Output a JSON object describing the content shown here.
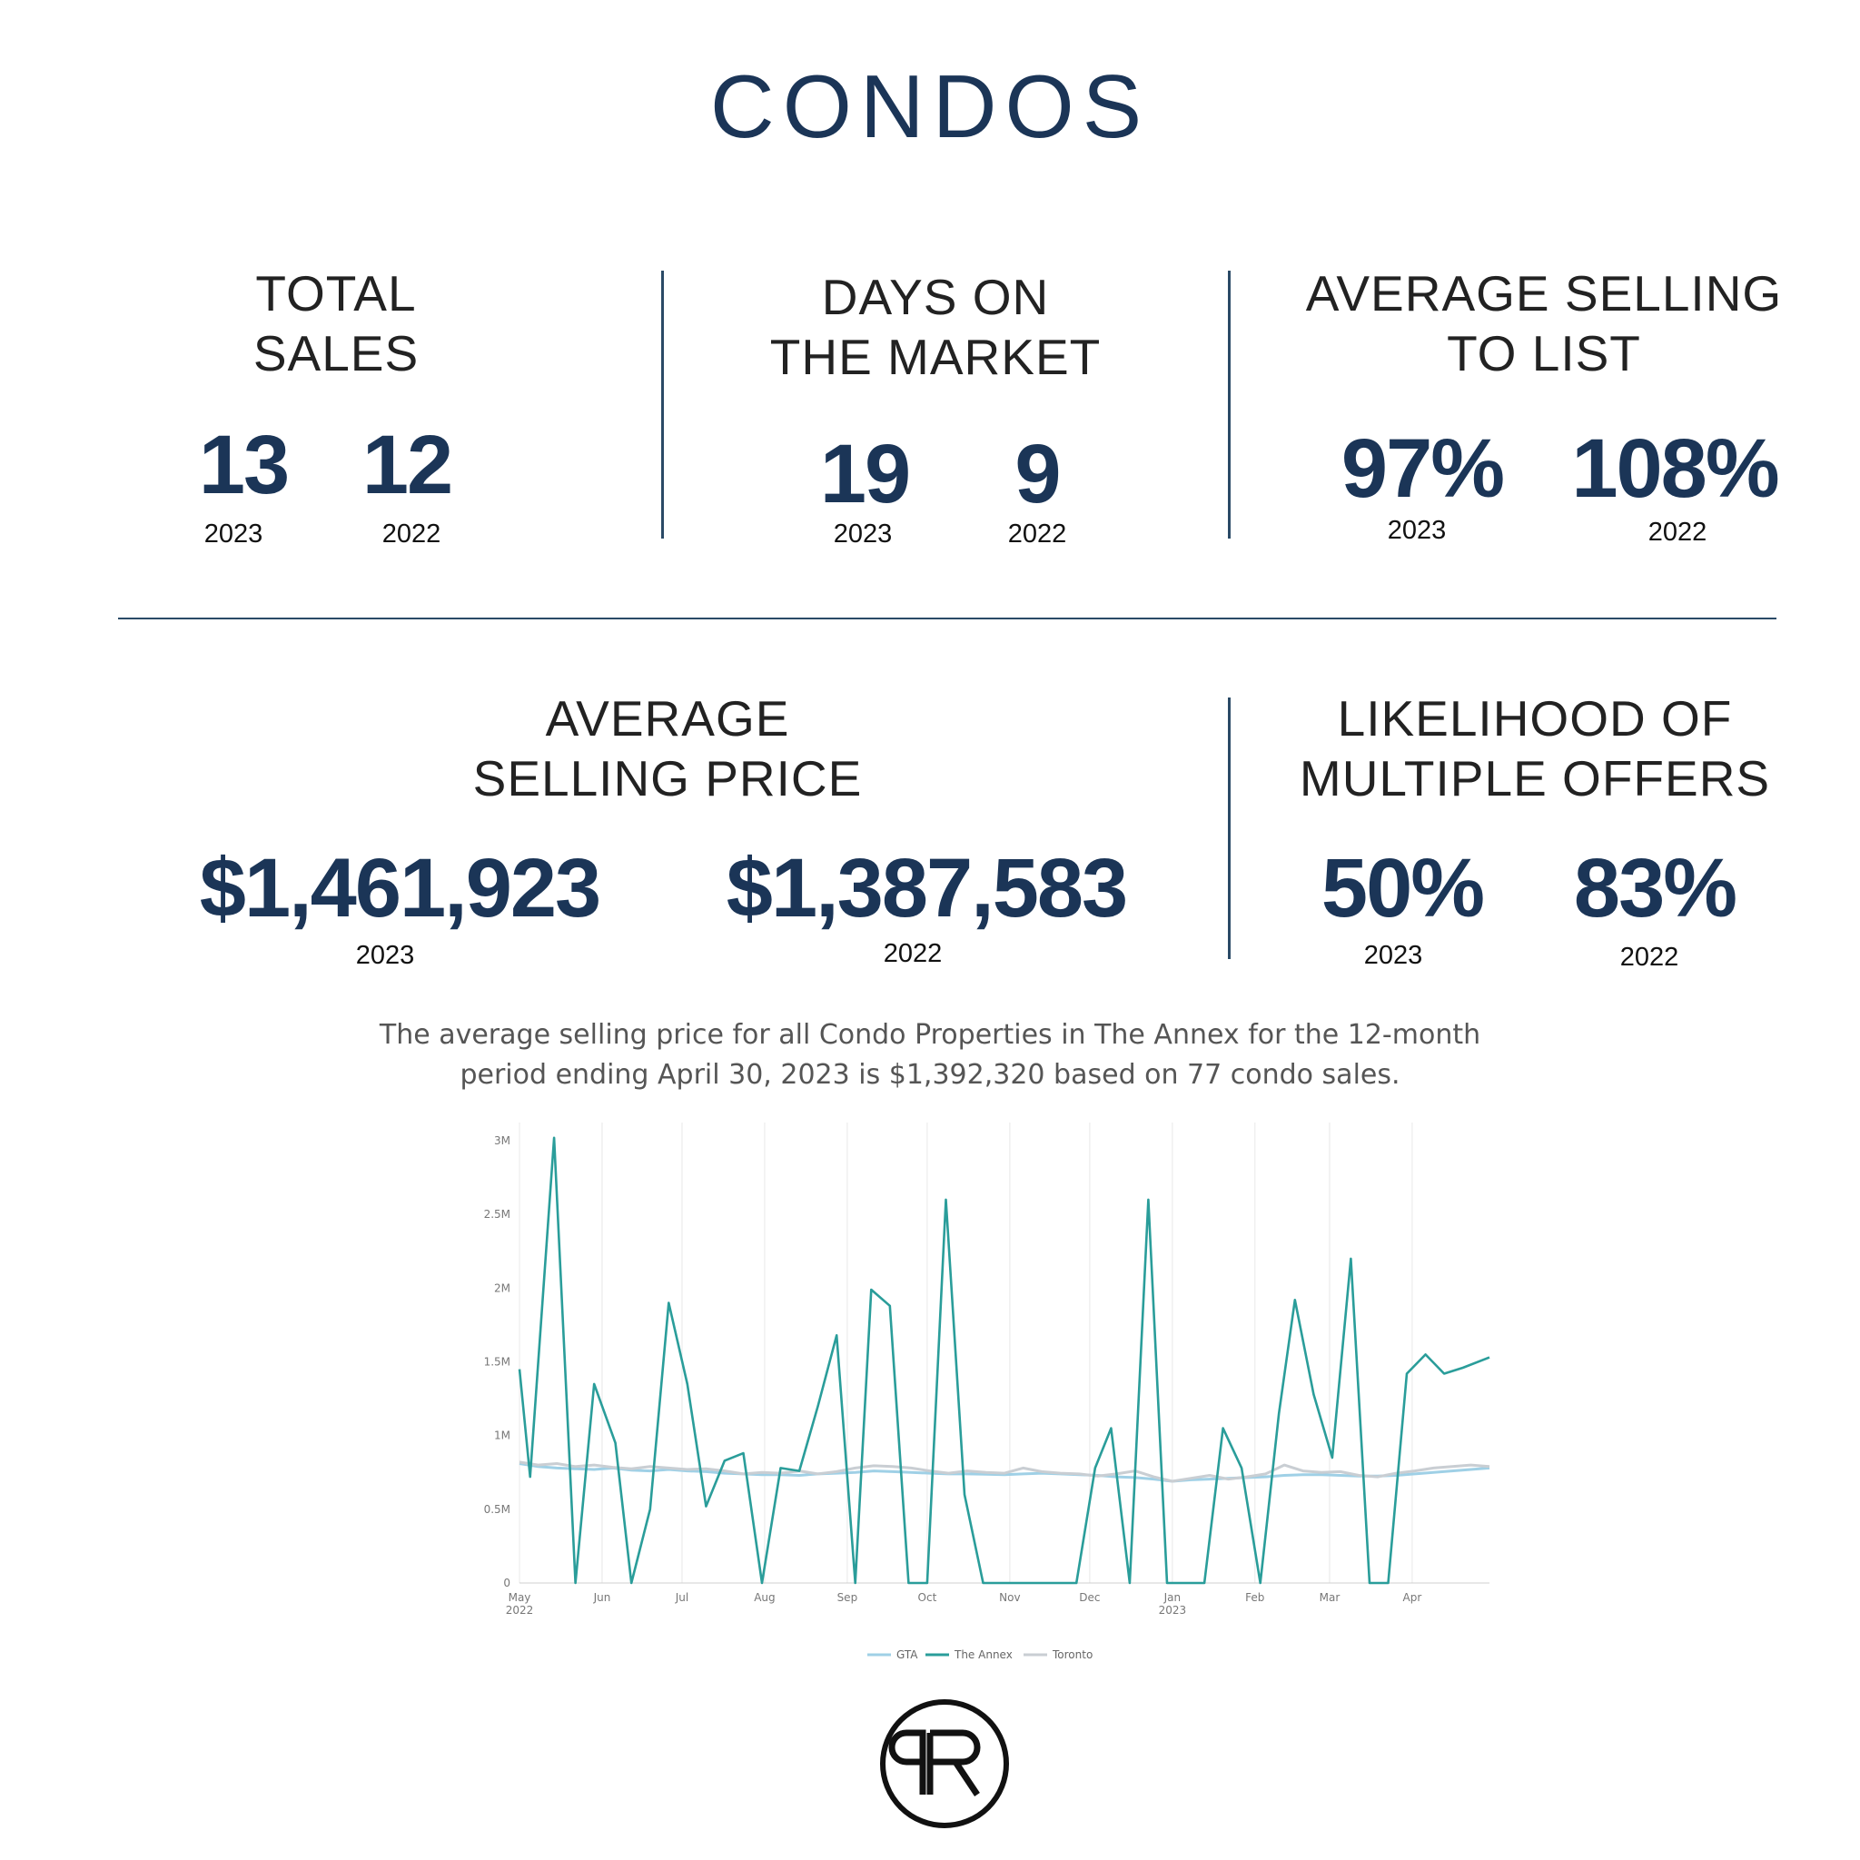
{
  "page": {
    "title": "CONDOS",
    "caption": "The average selling price for all Condo Properties in The Annex for the 12-month period ending April 30, 2023 is $1,392,320 based on 77 condo sales."
  },
  "stats": {
    "total_sales": {
      "label_line1": "TOTAL",
      "label_line2": "SALES",
      "v2023": "13",
      "v2022": "12",
      "y2023": "2023",
      "y2022": "2022"
    },
    "days_on_market": {
      "label_line1": "DAYS ON",
      "label_line2": "THE MARKET",
      "v2023": "19",
      "v2022": "9",
      "y2023": "2023",
      "y2022": "2022"
    },
    "avg_selling_to_list": {
      "label_line1": "AVERAGE SELLING",
      "label_line2": "TO LIST",
      "v2023": "97%",
      "v2022": "108%",
      "y2023": "2023",
      "y2022": "2022"
    },
    "avg_selling_price": {
      "label_line1": "AVERAGE",
      "label_line2": "SELLING PRICE",
      "v2023": "$1,461,923",
      "v2022": "$1,387,583",
      "y2023": "2023",
      "y2022": "2022"
    },
    "multiple_offers": {
      "label_line1": "LIKELIHOOD OF",
      "label_line2": "MULTIPLE OFFERS",
      "v2023": "50%",
      "v2022": "83%",
      "y2023": "2023",
      "y2022": "2022"
    }
  },
  "colors": {
    "navy": "#1b3557",
    "annex": "#2a9d9a",
    "gta": "#9fd0e6",
    "toronto": "#c9ced3"
  },
  "chart_data": {
    "type": "line",
    "title": "",
    "xlabel": "",
    "ylabel": "",
    "ylim": [
      0,
      3000000
    ],
    "y_ticks": [
      {
        "value": 0,
        "label": "0"
      },
      {
        "value": 500000,
        "label": "0.5M"
      },
      {
        "value": 1000000,
        "label": "1M"
      },
      {
        "value": 1500000,
        "label": "1.5M"
      },
      {
        "value": 2000000,
        "label": "2M"
      },
      {
        "value": 2500000,
        "label": "2.5M"
      },
      {
        "value": 3000000,
        "label": "3M"
      }
    ],
    "x_range": [
      "2022-05-01",
      "2023-04-30"
    ],
    "x_ticks": [
      {
        "date": "2022-05-01",
        "label": "May",
        "sub": "2022"
      },
      {
        "date": "2022-06-01",
        "label": "Jun",
        "sub": ""
      },
      {
        "date": "2022-07-01",
        "label": "Jul",
        "sub": ""
      },
      {
        "date": "2022-08-01",
        "label": "Aug",
        "sub": ""
      },
      {
        "date": "2022-09-01",
        "label": "Sep",
        "sub": ""
      },
      {
        "date": "2022-10-01",
        "label": "Oct",
        "sub": ""
      },
      {
        "date": "2022-11-01",
        "label": "Nov",
        "sub": ""
      },
      {
        "date": "2022-12-01",
        "label": "Dec",
        "sub": ""
      },
      {
        "date": "2023-01-01",
        "label": "Jan",
        "sub": "2023"
      },
      {
        "date": "2023-02-01",
        "label": "Feb",
        "sub": ""
      },
      {
        "date": "2023-03-01",
        "label": "Mar",
        "sub": ""
      },
      {
        "date": "2023-04-01",
        "label": "Apr",
        "sub": ""
      }
    ],
    "legend": [
      "GTA",
      "The Annex",
      "Toronto"
    ],
    "legend_position": "bottom",
    "series": [
      {
        "name": "GTA",
        "points": [
          [
            "2022-05-01",
            810000
          ],
          [
            "2022-05-08",
            790000
          ],
          [
            "2022-05-15",
            780000
          ],
          [
            "2022-05-22",
            775000
          ],
          [
            "2022-05-29",
            770000
          ],
          [
            "2022-06-05",
            780000
          ],
          [
            "2022-06-12",
            765000
          ],
          [
            "2022-06-19",
            760000
          ],
          [
            "2022-06-26",
            770000
          ],
          [
            "2022-07-03",
            760000
          ],
          [
            "2022-07-10",
            755000
          ],
          [
            "2022-07-17",
            745000
          ],
          [
            "2022-07-24",
            740000
          ],
          [
            "2022-07-31",
            735000
          ],
          [
            "2022-08-07",
            735000
          ],
          [
            "2022-08-14",
            730000
          ],
          [
            "2022-08-21",
            740000
          ],
          [
            "2022-08-28",
            745000
          ],
          [
            "2022-09-04",
            750000
          ],
          [
            "2022-09-11",
            760000
          ],
          [
            "2022-09-18",
            755000
          ],
          [
            "2022-09-25",
            750000
          ],
          [
            "2022-10-02",
            745000
          ],
          [
            "2022-10-09",
            740000
          ],
          [
            "2022-10-16",
            740000
          ],
          [
            "2022-10-23",
            738000
          ],
          [
            "2022-10-30",
            735000
          ],
          [
            "2022-11-06",
            740000
          ],
          [
            "2022-11-13",
            745000
          ],
          [
            "2022-11-20",
            740000
          ],
          [
            "2022-11-27",
            735000
          ],
          [
            "2022-12-04",
            730000
          ],
          [
            "2022-12-11",
            720000
          ],
          [
            "2022-12-18",
            715000
          ],
          [
            "2022-12-25",
            705000
          ],
          [
            "2023-01-01",
            690000
          ],
          [
            "2023-01-08",
            700000
          ],
          [
            "2023-01-15",
            705000
          ],
          [
            "2023-01-22",
            710000
          ],
          [
            "2023-01-29",
            715000
          ],
          [
            "2023-02-05",
            720000
          ],
          [
            "2023-02-12",
            730000
          ],
          [
            "2023-02-19",
            735000
          ],
          [
            "2023-02-26",
            735000
          ],
          [
            "2023-03-05",
            730000
          ],
          [
            "2023-03-12",
            725000
          ],
          [
            "2023-03-19",
            725000
          ],
          [
            "2023-03-26",
            730000
          ],
          [
            "2023-04-02",
            740000
          ],
          [
            "2023-04-09",
            750000
          ],
          [
            "2023-04-16",
            760000
          ],
          [
            "2023-04-23",
            770000
          ],
          [
            "2023-04-30",
            780000
          ]
        ]
      },
      {
        "name": "The Annex",
        "points": [
          [
            "2022-05-01",
            1450000
          ],
          [
            "2022-05-05",
            720000
          ],
          [
            "2022-05-14",
            3020000
          ],
          [
            "2022-05-22",
            0
          ],
          [
            "2022-05-29",
            1350000
          ],
          [
            "2022-06-06",
            950000
          ],
          [
            "2022-06-12",
            0
          ],
          [
            "2022-06-19",
            500000
          ],
          [
            "2022-06-26",
            1900000
          ],
          [
            "2022-07-03",
            1350000
          ],
          [
            "2022-07-10",
            520000
          ],
          [
            "2022-07-17",
            830000
          ],
          [
            "2022-07-24",
            880000
          ],
          [
            "2022-07-31",
            0
          ],
          [
            "2022-08-07",
            780000
          ],
          [
            "2022-08-14",
            760000
          ],
          [
            "2022-08-21",
            1200000
          ],
          [
            "2022-08-28",
            1680000
          ],
          [
            "2022-09-04",
            0
          ],
          [
            "2022-09-10",
            1990000
          ],
          [
            "2022-09-17",
            1880000
          ],
          [
            "2022-09-24",
            0
          ],
          [
            "2022-10-01",
            0
          ],
          [
            "2022-10-08",
            2600000
          ],
          [
            "2022-10-15",
            600000
          ],
          [
            "2022-10-22",
            0
          ],
          [
            "2022-10-29",
            0
          ],
          [
            "2022-11-05",
            0
          ],
          [
            "2022-11-12",
            0
          ],
          [
            "2022-11-19",
            0
          ],
          [
            "2022-11-26",
            0
          ],
          [
            "2022-12-03",
            780000
          ],
          [
            "2022-12-09",
            1050000
          ],
          [
            "2022-12-16",
            0
          ],
          [
            "2022-12-23",
            2600000
          ],
          [
            "2022-12-30",
            0
          ],
          [
            "2023-01-06",
            0
          ],
          [
            "2023-01-13",
            0
          ],
          [
            "2023-01-20",
            1050000
          ],
          [
            "2023-01-27",
            780000
          ],
          [
            "2023-02-03",
            0
          ],
          [
            "2023-02-10",
            1150000
          ],
          [
            "2023-02-16",
            1920000
          ],
          [
            "2023-02-23",
            1280000
          ],
          [
            "2023-03-02",
            850000
          ],
          [
            "2023-03-09",
            2200000
          ],
          [
            "2023-03-16",
            0
          ],
          [
            "2023-03-23",
            0
          ],
          [
            "2023-03-30",
            1420000
          ],
          [
            "2023-04-06",
            1550000
          ],
          [
            "2023-04-13",
            1420000
          ],
          [
            "2023-04-20",
            1460000
          ],
          [
            "2023-04-30",
            1530000
          ]
        ]
      },
      {
        "name": "Toronto",
        "points": [
          [
            "2022-05-01",
            820000
          ],
          [
            "2022-05-08",
            800000
          ],
          [
            "2022-05-15",
            810000
          ],
          [
            "2022-05-22",
            790000
          ],
          [
            "2022-05-29",
            800000
          ],
          [
            "2022-06-05",
            785000
          ],
          [
            "2022-06-12",
            775000
          ],
          [
            "2022-06-19",
            790000
          ],
          [
            "2022-06-26",
            780000
          ],
          [
            "2022-07-03",
            770000
          ],
          [
            "2022-07-10",
            775000
          ],
          [
            "2022-07-17",
            760000
          ],
          [
            "2022-07-24",
            740000
          ],
          [
            "2022-07-31",
            750000
          ],
          [
            "2022-08-07",
            745000
          ],
          [
            "2022-08-14",
            760000
          ],
          [
            "2022-08-21",
            740000
          ],
          [
            "2022-08-28",
            755000
          ],
          [
            "2022-09-04",
            780000
          ],
          [
            "2022-09-11",
            795000
          ],
          [
            "2022-09-18",
            790000
          ],
          [
            "2022-09-25",
            780000
          ],
          [
            "2022-10-02",
            760000
          ],
          [
            "2022-10-09",
            745000
          ],
          [
            "2022-10-16",
            760000
          ],
          [
            "2022-10-23",
            750000
          ],
          [
            "2022-10-30",
            745000
          ],
          [
            "2022-11-06",
            780000
          ],
          [
            "2022-11-13",
            755000
          ],
          [
            "2022-11-20",
            745000
          ],
          [
            "2022-11-27",
            740000
          ],
          [
            "2022-12-04",
            725000
          ],
          [
            "2022-12-11",
            740000
          ],
          [
            "2022-12-18",
            760000
          ],
          [
            "2022-12-25",
            720000
          ],
          [
            "2023-01-01",
            690000
          ],
          [
            "2023-01-08",
            710000
          ],
          [
            "2023-01-15",
            730000
          ],
          [
            "2023-01-22",
            705000
          ],
          [
            "2023-01-29",
            720000
          ],
          [
            "2023-02-05",
            740000
          ],
          [
            "2023-02-12",
            800000
          ],
          [
            "2023-02-19",
            760000
          ],
          [
            "2023-02-26",
            750000
          ],
          [
            "2023-03-05",
            755000
          ],
          [
            "2023-03-12",
            730000
          ],
          [
            "2023-03-19",
            720000
          ],
          [
            "2023-03-26",
            745000
          ],
          [
            "2023-04-02",
            760000
          ],
          [
            "2023-04-09",
            780000
          ],
          [
            "2023-04-16",
            790000
          ],
          [
            "2023-04-23",
            800000
          ],
          [
            "2023-04-30",
            790000
          ]
        ]
      }
    ]
  }
}
